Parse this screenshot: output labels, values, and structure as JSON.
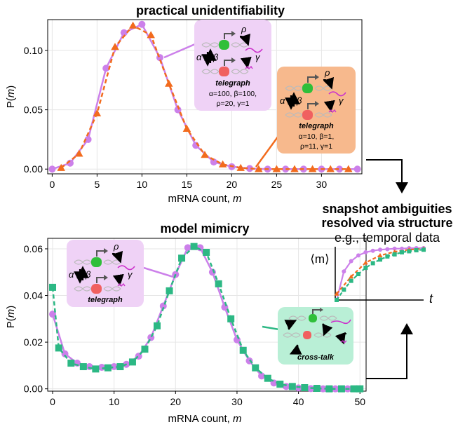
{
  "panels": {
    "top": {
      "title": "practical unidentifiability",
      "xlabel_main": "mRNA count, ",
      "xlabel_var": "m",
      "ylabel_main": "P(",
      "ylabel_var": "m",
      "ylabel_end": ")",
      "xticks": [
        "0",
        "5",
        "10",
        "15",
        "20",
        "25",
        "30"
      ],
      "yticks": [
        "0.00",
        "0.05",
        "0.10"
      ]
    },
    "bottom": {
      "title": "model mimicry",
      "xlabel_main": "mRNA count, ",
      "xlabel_var": "m",
      "ylabel_main": "P(",
      "ylabel_var": "m",
      "ylabel_end": ")",
      "xticks": [
        "0",
        "10",
        "20",
        "30",
        "40",
        "50"
      ],
      "yticks": [
        "0.00",
        "0.02",
        "0.04",
        "0.06"
      ]
    }
  },
  "boxes": {
    "top_violet": {
      "label": "telegraph",
      "params_line1": "α=100, β=100,",
      "params_line2": "ρ=20, γ=1"
    },
    "top_orange": {
      "label": "telegraph",
      "params_line1": "α=10, β=1,",
      "params_line2": "ρ=11, γ=1"
    },
    "bottom_violet": {
      "label": "telegraph"
    },
    "bottom_green": {
      "label": "cross-talk"
    }
  },
  "symbols": {
    "alpha": "α",
    "beta": "β",
    "rho": "ρ",
    "gamma": "γ"
  },
  "side": {
    "line1": "snapshot ambiguities",
    "line2": "resolved via structure",
    "line3": "e.g., temporal data",
    "ylabel": "⟨m⟩",
    "xlabel": "t"
  },
  "colors": {
    "violet": "#cc80ea",
    "orange": "#f26b1d",
    "green": "#2cb884",
    "violet_box": "#efd2f6",
    "orange_box": "#f7b98d",
    "green_box": "#b9efd6",
    "grid": "#e6e6e6"
  },
  "chart_data": [
    {
      "type": "line",
      "xlim": [
        -0.5,
        34.5
      ],
      "ylim": [
        -0.004,
        0.126
      ],
      "grid": true,
      "title": "practical unidentifiability",
      "xlabel": "mRNA count, m",
      "ylabel": "P(m)",
      "series": [
        {
          "color": "#cc80ea",
          "marker": "circle",
          "x": [
            0,
            2,
            4,
            6,
            8,
            10,
            12,
            14,
            16,
            18,
            20,
            22,
            24,
            26,
            28,
            30,
            32,
            34
          ],
          "values": [
            0.0,
            0.005,
            0.025,
            0.085,
            0.115,
            0.122,
            0.094,
            0.05,
            0.02,
            0.006,
            0.002,
            0.0005,
            0.0,
            0.0,
            0.0,
            0.0,
            0.0,
            0.0
          ]
        },
        {
          "color": "#f26b1d",
          "marker": "triangle",
          "x": [
            1,
            3,
            5,
            7,
            9,
            11,
            13,
            15,
            17,
            19,
            21,
            23,
            25,
            27,
            29,
            31,
            33
          ],
          "values": [
            0.001,
            0.013,
            0.047,
            0.103,
            0.121,
            0.113,
            0.072,
            0.034,
            0.012,
            0.004,
            0.001,
            0.0,
            0.0,
            0.0,
            0.0,
            0.0,
            0.0
          ]
        }
      ]
    },
    {
      "type": "line",
      "xlim": [
        -0.8,
        51
      ],
      "ylim": [
        -0.001,
        0.0645
      ],
      "grid": true,
      "title": "model mimicry",
      "xlabel": "mRNA count, m",
      "ylabel": "P(m)",
      "series": [
        {
          "color": "#cc80ea",
          "marker": "circle",
          "x": [
            0,
            2,
            4,
            6,
            8,
            10,
            12,
            14,
            16,
            18,
            20,
            22,
            24,
            26,
            28,
            30,
            32,
            34,
            36,
            38,
            40,
            42,
            44,
            46,
            48,
            50
          ],
          "values": [
            0.032,
            0.015,
            0.011,
            0.0095,
            0.0092,
            0.0095,
            0.0105,
            0.014,
            0.022,
            0.0355,
            0.049,
            0.0605,
            0.0605,
            0.05,
            0.035,
            0.021,
            0.012,
            0.0055,
            0.0025,
            0.001,
            0.0004,
            0.0001,
            0.0,
            0.0,
            0.0,
            0.0
          ]
        },
        {
          "color": "#2cb884",
          "marker": "square",
          "x": [
            0,
            1,
            3,
            5,
            7,
            9,
            11,
            13,
            15,
            17,
            19,
            21,
            23,
            25,
            27,
            29,
            31,
            33,
            35,
            37,
            39,
            41,
            43,
            45,
            47,
            49,
            50
          ],
          "values": [
            0.0435,
            0.0175,
            0.011,
            0.0095,
            0.0085,
            0.009,
            0.0095,
            0.0115,
            0.017,
            0.027,
            0.042,
            0.056,
            0.061,
            0.0585,
            0.045,
            0.03,
            0.0165,
            0.009,
            0.0045,
            0.002,
            0.001,
            0.0005,
            0.0002,
            0.0,
            0.0,
            0.0,
            0.0
          ]
        }
      ]
    },
    {
      "type": "line",
      "xlabel": "t",
      "ylabel": "⟨m⟩",
      "series": [
        {
          "color": "#cc80ea",
          "marker": "circle",
          "x": [
            0,
            1,
            2,
            3,
            4,
            5,
            6,
            7,
            8,
            9,
            10,
            11,
            12
          ],
          "values": [
            0.0,
            0.55,
            0.75,
            0.86,
            0.92,
            0.95,
            0.97,
            0.98,
            0.99,
            0.99,
            1.0,
            1.0,
            1.0
          ]
        },
        {
          "color": "#f26b1d",
          "marker": "triangle",
          "x": [
            0,
            2,
            4,
            6,
            8,
            10,
            12
          ],
          "values": [
            0.12,
            0.45,
            0.72,
            0.86,
            0.93,
            0.97,
            0.99
          ]
        },
        {
          "color": "#2cb884",
          "marker": "square",
          "x": [
            0,
            1,
            2,
            3,
            4,
            5,
            6,
            7,
            8,
            9,
            10,
            11,
            12
          ],
          "values": [
            0.0,
            0.2,
            0.37,
            0.5,
            0.62,
            0.71,
            0.78,
            0.84,
            0.88,
            0.92,
            0.94,
            0.96,
            0.97
          ]
        }
      ]
    }
  ]
}
